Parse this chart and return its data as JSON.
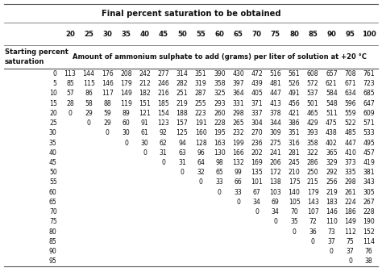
{
  "title": "Final percent saturation to be obtained",
  "col_header_label": "Starting percent\nsaturation",
  "col_header_sub": "Amount of ammonium sulphate to add (grams) per liter of solution at +20 °C",
  "final_cols": [
    20,
    25,
    30,
    35,
    40,
    45,
    50,
    55,
    60,
    65,
    70,
    75,
    80,
    85,
    90,
    95,
    100
  ],
  "starting_rows": [
    0,
    5,
    10,
    15,
    20,
    25,
    30,
    35,
    40,
    45,
    50,
    55,
    60,
    65,
    70,
    75,
    80,
    85,
    90,
    95
  ],
  "table_data": {
    "0": [
      113,
      144,
      176,
      208,
      242,
      277,
      314,
      351,
      390,
      430,
      472,
      516,
      561,
      608,
      657,
      708,
      761
    ],
    "5": [
      85,
      115,
      146,
      179,
      212,
      246,
      282,
      319,
      358,
      397,
      439,
      481,
      526,
      572,
      621,
      671,
      723
    ],
    "10": [
      57,
      86,
      117,
      149,
      182,
      216,
      251,
      287,
      325,
      364,
      405,
      447,
      491,
      537,
      584,
      634,
      685
    ],
    "15": [
      28,
      58,
      88,
      119,
      151,
      185,
      219,
      255,
      293,
      331,
      371,
      413,
      456,
      501,
      548,
      596,
      647
    ],
    "20": [
      0,
      29,
      59,
      89,
      121,
      154,
      188,
      223,
      260,
      298,
      337,
      378,
      421,
      465,
      511,
      559,
      609
    ],
    "25": [
      null,
      0,
      29,
      60,
      91,
      123,
      157,
      191,
      228,
      265,
      304,
      344,
      386,
      429,
      475,
      522,
      571
    ],
    "30": [
      null,
      null,
      0,
      30,
      61,
      92,
      125,
      160,
      195,
      232,
      270,
      309,
      351,
      393,
      438,
      485,
      533
    ],
    "35": [
      null,
      null,
      null,
      0,
      30,
      62,
      94,
      128,
      163,
      199,
      236,
      275,
      316,
      358,
      402,
      447,
      495
    ],
    "40": [
      null,
      null,
      null,
      null,
      0,
      31,
      63,
      96,
      130,
      166,
      202,
      241,
      281,
      322,
      365,
      410,
      457
    ],
    "45": [
      null,
      null,
      null,
      null,
      null,
      0,
      31,
      64,
      98,
      132,
      169,
      206,
      245,
      286,
      329,
      373,
      419
    ],
    "50": [
      null,
      null,
      null,
      null,
      null,
      null,
      0,
      32,
      65,
      99,
      135,
      172,
      210,
      250,
      292,
      335,
      381
    ],
    "55": [
      null,
      null,
      null,
      null,
      null,
      null,
      null,
      0,
      33,
      66,
      101,
      138,
      175,
      215,
      256,
      298,
      343
    ],
    "60": [
      null,
      null,
      null,
      null,
      null,
      null,
      null,
      null,
      0,
      33,
      67,
      103,
      140,
      179,
      219,
      261,
      305
    ],
    "65": [
      null,
      null,
      null,
      null,
      null,
      null,
      null,
      null,
      null,
      0,
      34,
      69,
      105,
      143,
      183,
      224,
      267
    ],
    "70": [
      null,
      null,
      null,
      null,
      null,
      null,
      null,
      null,
      null,
      null,
      0,
      34,
      70,
      107,
      146,
      186,
      228
    ],
    "75": [
      null,
      null,
      null,
      null,
      null,
      null,
      null,
      null,
      null,
      null,
      null,
      0,
      35,
      72,
      110,
      149,
      190
    ],
    "80": [
      null,
      null,
      null,
      null,
      null,
      null,
      null,
      null,
      null,
      null,
      null,
      null,
      0,
      36,
      73,
      112,
      152
    ],
    "85": [
      null,
      null,
      null,
      null,
      null,
      null,
      null,
      null,
      null,
      null,
      null,
      null,
      null,
      0,
      37,
      75,
      114
    ],
    "90": [
      null,
      null,
      null,
      null,
      null,
      null,
      null,
      null,
      null,
      null,
      null,
      null,
      null,
      null,
      0,
      37,
      76
    ],
    "95": [
      null,
      null,
      null,
      null,
      null,
      null,
      null,
      null,
      null,
      null,
      null,
      null,
      null,
      null,
      null,
      0,
      38
    ]
  },
  "line_color": "#555555",
  "text_color": "#111111",
  "font_size_title": 7.2,
  "font_size_header": 6.2,
  "font_size_sub": 6.0,
  "font_size_data": 5.6
}
